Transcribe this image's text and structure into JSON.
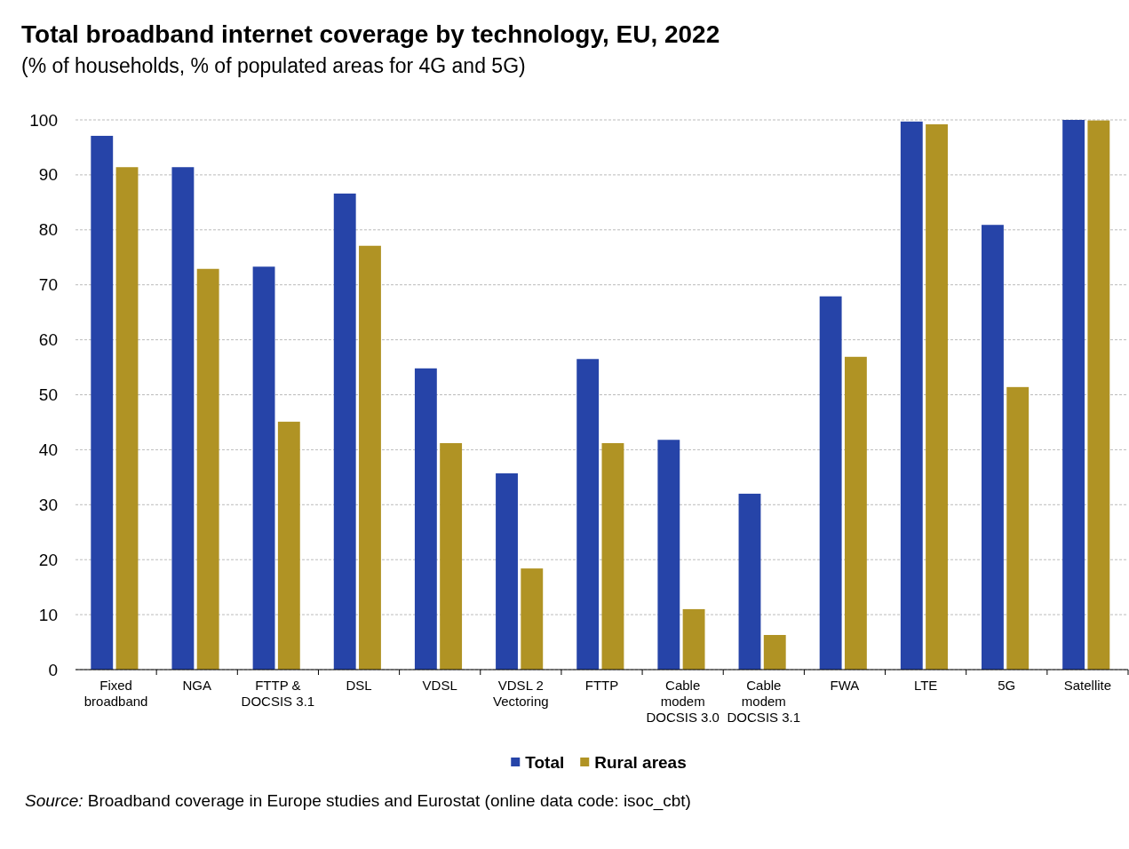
{
  "chart_data": {
    "type": "bar",
    "title": "Total broadband internet coverage by technology, EU, 2022",
    "subtitle": "(% of households,  % of populated  areas for 4G and  5G)",
    "categories": [
      "Fixed broadband",
      "NGA",
      "FTTP & DOCSIS 3.1",
      "DSL",
      "VDSL",
      "VDSL 2 Vectoring",
      "FTTP",
      "Cable modem DOCSIS 3.0",
      "Cable modem DOCSIS 3.1",
      "FWA",
      "LTE",
      "5G",
      "Satellite"
    ],
    "series": [
      {
        "name": "Total",
        "color": "#2644a8",
        "values": [
          97.1,
          91.4,
          73.3,
          86.6,
          54.8,
          35.7,
          56.5,
          41.8,
          32.0,
          67.9,
          99.7,
          80.9,
          100
        ]
      },
      {
        "name": "Rural areas",
        "color": "#b09324",
        "values": [
          91.4,
          72.9,
          45.1,
          77.1,
          41.2,
          18.4,
          41.2,
          11.0,
          6.3,
          56.9,
          99.2,
          51.4,
          99.9
        ]
      }
    ],
    "ylim": [
      0,
      100
    ],
    "yticks": [
      0,
      10,
      20,
      30,
      40,
      50,
      60,
      70,
      80,
      90,
      100
    ],
    "grid": "y",
    "legend": "bottom",
    "annotations": [
      "Source: Broadband coverage in Europe studies and Eurostat (online data code: isoc_cbt)"
    ]
  }
}
